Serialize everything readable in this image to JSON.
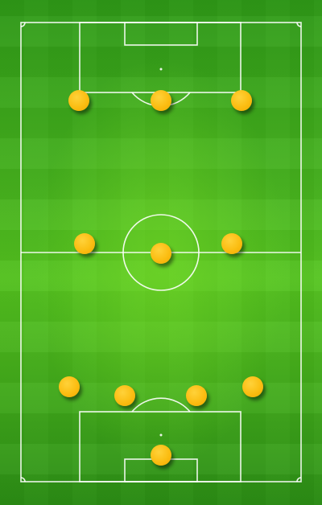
{
  "pitch": {
    "surface": "grass",
    "grass_color": "#45b21e",
    "line_color": "#ffffff",
    "player_color": "#fbbd12"
  },
  "players": [
    {
      "id": "p1",
      "role": "forward-left"
    },
    {
      "id": "p2",
      "role": "forward-center"
    },
    {
      "id": "p3",
      "role": "forward-right"
    },
    {
      "id": "p4",
      "role": "midfielder-left"
    },
    {
      "id": "p5",
      "role": "midfielder-center"
    },
    {
      "id": "p6",
      "role": "midfielder-right"
    },
    {
      "id": "p7",
      "role": "defender-left"
    },
    {
      "id": "p8",
      "role": "defender-center-left"
    },
    {
      "id": "p9",
      "role": "defender-center-right"
    },
    {
      "id": "p10",
      "role": "defender-right"
    },
    {
      "id": "p11",
      "role": "goalkeeper"
    }
  ]
}
